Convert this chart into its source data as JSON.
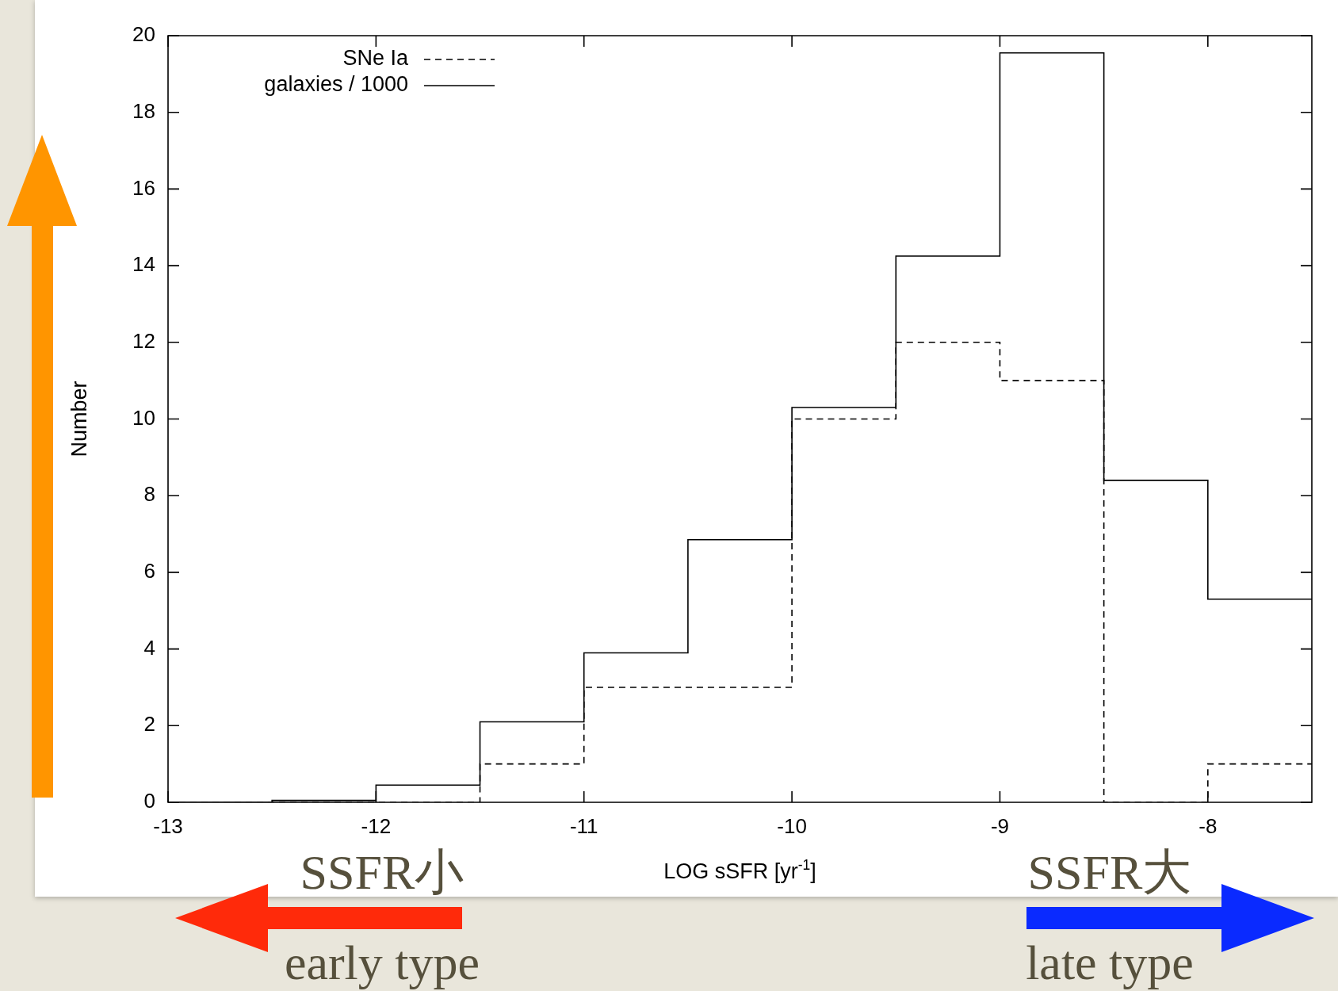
{
  "chart_data": {
    "type": "histogram",
    "xlabel": "LOG sSFR [yr$^{-1}$]",
    "ylabel": "Number",
    "bins": [
      -13,
      -12.5,
      -12,
      -11.5,
      -11,
      -10.5,
      -10,
      -9.5,
      -9,
      -8.5,
      -8,
      -7.5
    ],
    "series": [
      {
        "name": "SNe Ia",
        "color": "#000000",
        "line_style": "dashed",
        "values": [
          0,
          0,
          0,
          1,
          3,
          3,
          10,
          12,
          11,
          0,
          1
        ]
      },
      {
        "name": "galaxies / 1000",
        "color": "#000000",
        "line_style": "solid",
        "values": [
          0,
          0.05,
          0.45,
          2.1,
          3.9,
          6.85,
          10.3,
          14.25,
          19.55,
          8.4,
          5.3
        ]
      }
    ],
    "xlim": [
      -13,
      -7.5
    ],
    "xticks": [
      -13,
      -12,
      -11,
      -10,
      -9,
      -8
    ],
    "ylim": [
      0,
      20
    ],
    "yticks": [
      0,
      2,
      4,
      6,
      8,
      10,
      12,
      14,
      16,
      18,
      20
    ],
    "legend": "top left",
    "annotations": [
      "SSFR小",
      "early type",
      "SSFR大",
      "late type"
    ]
  }
}
